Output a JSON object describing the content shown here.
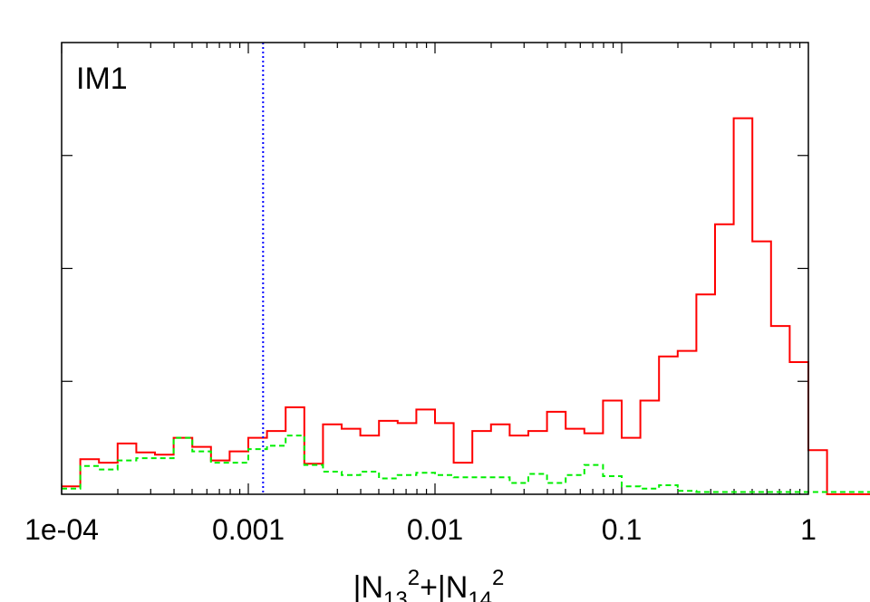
{
  "chart_data": {
    "type": "histogram",
    "panel_label": "IM1",
    "xlabel_parts": {
      "a": "|N",
      "a_sub": "13",
      "a_sup": "2",
      "plus": "+|N",
      "b_sub": "14",
      "b_sup": "2"
    },
    "xscale": "log",
    "xlim": [
      0.0001,
      1
    ],
    "ylim": [
      0,
      4
    ],
    "x_ticks": [
      {
        "value": 0.0001,
        "label": "1e-04"
      },
      {
        "value": 0.001,
        "label": "0.001"
      },
      {
        "value": 0.01,
        "label": "0.01"
      },
      {
        "value": 0.1,
        "label": "0.1"
      },
      {
        "value": 1,
        "label": "1"
      }
    ],
    "y_ticks": [
      1,
      2,
      3
    ],
    "y_tick_labels_shown": false,
    "vline": {
      "x": 0.0012,
      "color": "#0000ff",
      "style": "dotted"
    },
    "bins_per_decade": 10,
    "series": [
      {
        "color": "#ff0000",
        "style": "solid",
        "values": [
          0.07,
          0.31,
          0.28,
          0.45,
          0.37,
          0.35,
          0.5,
          0.42,
          0.3,
          0.38,
          0.5,
          0.56,
          0.77,
          0.27,
          0.62,
          0.58,
          0.52,
          0.65,
          0.63,
          0.75,
          0.63,
          0.28,
          0.56,
          0.62,
          0.52,
          0.56,
          0.73,
          0.58,
          0.54,
          0.83,
          0.5,
          0.83,
          1.22,
          1.27,
          1.77,
          2.39,
          3.33,
          2.24,
          1.49,
          1.17,
          0.39,
          0.0,
          0.0,
          0.0,
          0.0,
          0.0,
          0.0,
          0.0,
          0.0,
          0.0
        ]
      },
      {
        "color": "#00ee00",
        "style": "dashed",
        "values": [
          0.05,
          0.25,
          0.22,
          0.3,
          0.32,
          0.32,
          0.5,
          0.38,
          0.28,
          0.28,
          0.4,
          0.43,
          0.52,
          0.26,
          0.2,
          0.17,
          0.2,
          0.14,
          0.17,
          0.19,
          0.17,
          0.15,
          0.15,
          0.15,
          0.1,
          0.18,
          0.1,
          0.17,
          0.26,
          0.16,
          0.07,
          0.05,
          0.08,
          0.03,
          0.02,
          0.02,
          0.02,
          0.02,
          0.02,
          0.02,
          0.02,
          0.02,
          0.02,
          0.02,
          0.02,
          0.02,
          0.02,
          0.02,
          0.02,
          0.02
        ]
      }
    ]
  }
}
